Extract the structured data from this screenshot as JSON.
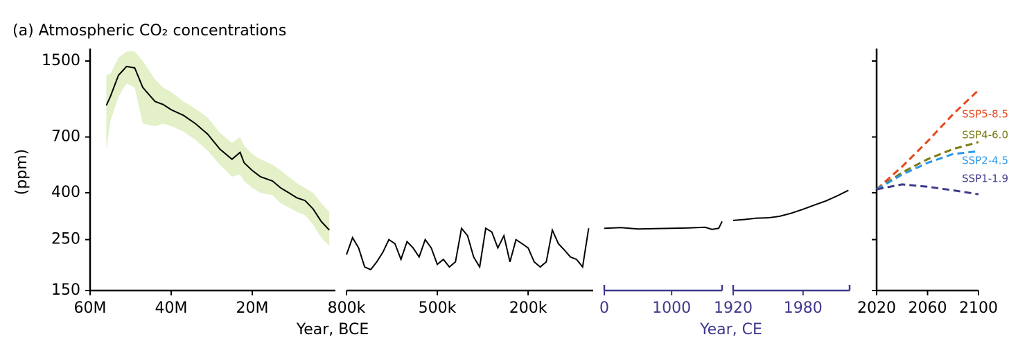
{
  "chart_data": {
    "type": "line",
    "title": "(a) Atmospheric CO₂ concentrations",
    "ylabel": "(ppm)",
    "yscale": "log",
    "ylim": [
      150,
      1700
    ],
    "yticks": [
      150,
      250,
      400,
      700,
      1500
    ],
    "xlabels": [
      "Year, BCE",
      "Year, CE"
    ],
    "xlabel_colors": [
      "#000000",
      "#3f3a8a"
    ],
    "panels": [
      {
        "xlim": [
          60,
          -0.5
        ],
        "left_axis": true,
        "ytick_labels": true,
        "axis_color": "#000000",
        "xticks": [
          {
            "value": 60,
            "label": "60M"
          },
          {
            "value": 40,
            "label": "40M"
          },
          {
            "value": 20,
            "label": "20M"
          }
        ],
        "band_color": "#e3f0c8",
        "series": [
          {
            "color": "#000000",
            "x": [
              56,
              55,
              53,
              51,
              49,
              47,
              44,
              42,
              40,
              37,
              34,
              31,
              28,
              25,
              23,
              22,
              20,
              18,
              15,
              13,
              11,
              9,
              7,
              5,
              3,
              1
            ],
            "values": [
              960,
              1050,
              1300,
              1420,
              1400,
              1150,
              1000,
              970,
              920,
              870,
              800,
              720,
              620,
              560,
              600,
              540,
              500,
              470,
              450,
              420,
              400,
              380,
              370,
              340,
              300,
              275
            ],
            "lower": [
              620,
              820,
              1050,
              1200,
              1150,
              800,
              780,
              800,
              780,
              740,
              680,
              610,
              530,
              470,
              480,
              450,
              420,
              400,
              390,
              360,
              345,
              330,
              320,
              290,
              255,
              235
            ],
            "upper": [
              1300,
              1320,
              1550,
              1650,
              1650,
              1500,
              1250,
              1150,
              1100,
              1000,
              930,
              850,
              730,
              660,
              700,
              640,
              590,
              560,
              530,
              500,
              470,
              440,
              420,
              400,
              360,
              330
            ]
          }
        ]
      },
      {
        "xlim": [
          800,
          -15
        ],
        "left_axis": false,
        "ytick_labels": false,
        "axis_color": "#000000",
        "xticks": [
          {
            "value": 800,
            "label": "800k"
          },
          {
            "value": 500,
            "label": "500k"
          },
          {
            "value": 200,
            "label": "200k"
          }
        ],
        "series": [
          {
            "color": "#000000",
            "x": [
              800,
              780,
              760,
              740,
              720,
              700,
              680,
              660,
              640,
              620,
              600,
              580,
              560,
              540,
              520,
              500,
              480,
              460,
              440,
              420,
              400,
              380,
              360,
              340,
              320,
              300,
              280,
              260,
              240,
              220,
              200,
              180,
              160,
              140,
              120,
              100,
              80,
              60,
              40,
              20,
              0
            ],
            "values": [
              215,
              255,
              230,
              190,
              185,
              200,
              220,
              250,
              240,
              205,
              245,
              230,
              210,
              250,
              230,
              195,
              205,
              190,
              200,
              280,
              260,
              210,
              190,
              280,
              270,
              230,
              260,
              200,
              250,
              240,
              230,
              200,
              190,
              200,
              275,
              240,
              225,
              210,
              205,
              190,
              280
            ]
          }
        ]
      },
      {
        "xlim": [
          0,
          1750
        ],
        "left_axis": false,
        "ytick_labels": false,
        "axis_color": "#3f3a8a",
        "end_caps": true,
        "xticks": [
          0,
          1000
        ],
        "series": [
          {
            "color": "#000000",
            "x": [
              0,
              250,
              500,
              750,
              1000,
              1250,
              1500,
              1600,
              1700,
              1750
            ],
            "values": [
              280,
              282,
              278,
              279,
              280,
              281,
              283,
              277,
              280,
              300
            ]
          }
        ]
      },
      {
        "xlim": [
          1920,
          2020
        ],
        "left_axis": false,
        "ytick_labels": false,
        "axis_color": "#3f3a8a",
        "end_caps": true,
        "xticks": [
          1920,
          1980
        ],
        "series": [
          {
            "color": "#000000",
            "x": [
              1920,
              1930,
              1940,
              1950,
              1960,
              1970,
              1980,
              1990,
              2000,
              2010,
              2019
            ],
            "values": [
              303,
              306,
              310,
              311,
              316,
              326,
              339,
              354,
              369,
              389,
              410
            ]
          }
        ]
      },
      {
        "xlim": [
          2020,
          2100
        ],
        "left_axis": true,
        "ytick_labels": false,
        "axis_color": "#000000",
        "dash": true,
        "xticks": [
          2020,
          2060,
          2100
        ],
        "series": [
          {
            "name": "SSP5-8.5",
            "color": "#e8461c",
            "x": [
              2020,
              2040,
              2060,
              2080,
              2100
            ],
            "values": [
              414,
              520,
              670,
              880,
              1120
            ]
          },
          {
            "name": "SSP4-6.0",
            "color": "#7a7a10",
            "x": [
              2020,
              2040,
              2060,
              2080,
              2100
            ],
            "values": [
              414,
              490,
              560,
              620,
              665
            ]
          },
          {
            "name": "SSP2-4.5",
            "color": "#2a97e8",
            "x": [
              2020,
              2040,
              2060,
              2080,
              2100
            ],
            "values": [
              414,
              480,
              540,
              590,
              607
            ]
          },
          {
            "name": "SSP1-1.9",
            "color": "#3f3a8a",
            "x": [
              2020,
              2040,
              2060,
              2080,
              2100
            ],
            "values": [
              414,
              435,
              425,
              410,
              394
            ]
          }
        ]
      }
    ]
  }
}
